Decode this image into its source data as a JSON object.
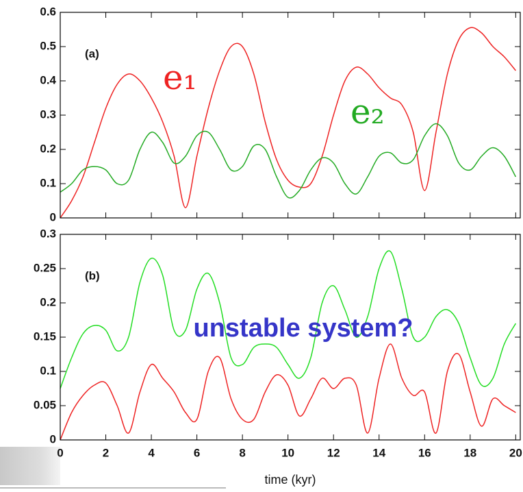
{
  "chart_data": [
    {
      "type": "line",
      "annotation": "(a)",
      "annotation_color": "#111111",
      "x": [
        0,
        0.5,
        1,
        1.5,
        2,
        2.5,
        3,
        3.5,
        4,
        4.5,
        5,
        5.5,
        6,
        6.5,
        7,
        7.5,
        8,
        8.5,
        9,
        9.5,
        10,
        10.5,
        11,
        11.5,
        12,
        12.5,
        13,
        13.5,
        14,
        14.5,
        15,
        15.5,
        16,
        16.5,
        17,
        17.5,
        18,
        18.5,
        19,
        19.5,
        20
      ],
      "series": [
        {
          "name": "e₁",
          "color": "#ee2222",
          "values": [
            0,
            0.05,
            0.12,
            0.22,
            0.32,
            0.39,
            0.42,
            0.4,
            0.35,
            0.28,
            0.18,
            0.03,
            0.18,
            0.32,
            0.43,
            0.5,
            0.5,
            0.42,
            0.28,
            0.17,
            0.11,
            0.09,
            0.1,
            0.18,
            0.3,
            0.4,
            0.44,
            0.42,
            0.38,
            0.35,
            0.33,
            0.25,
            0.08,
            0.25,
            0.42,
            0.52,
            0.555,
            0.54,
            0.5,
            0.47,
            0.43
          ]
        },
        {
          "name": "e₂",
          "color": "#22aa22",
          "values": [
            0.075,
            0.1,
            0.14,
            0.15,
            0.14,
            0.1,
            0.11,
            0.2,
            0.25,
            0.22,
            0.16,
            0.18,
            0.24,
            0.25,
            0.2,
            0.14,
            0.15,
            0.21,
            0.2,
            0.12,
            0.06,
            0.08,
            0.14,
            0.175,
            0.16,
            0.1,
            0.07,
            0.12,
            0.18,
            0.19,
            0.16,
            0.17,
            0.24,
            0.275,
            0.24,
            0.16,
            0.14,
            0.18,
            0.205,
            0.18,
            0.12
          ]
        }
      ],
      "xlim": [
        0,
        20.2
      ],
      "xticks": [
        0,
        2,
        4,
        6,
        8,
        10,
        12,
        14,
        16,
        18,
        20
      ],
      "xtick_labels": false,
      "ylim": [
        0,
        0.6
      ],
      "yticks": [
        0,
        0.1,
        0.2,
        0.3,
        0.4,
        0.5,
        0.6
      ]
    },
    {
      "type": "line",
      "annotation": "(b)",
      "annotation_color": "#111111",
      "note": "unstable system?",
      "note_color": "#3535c8",
      "x_label": "time (kyr)",
      "x": [
        0,
        0.5,
        1,
        1.5,
        2,
        2.5,
        3,
        3.5,
        4,
        4.5,
        5,
        5.5,
        6,
        6.5,
        7,
        7.5,
        8,
        8.5,
        9,
        9.5,
        10,
        10.5,
        11,
        11.5,
        12,
        12.5,
        13,
        13.5,
        14,
        14.5,
        15,
        15.5,
        16,
        16.5,
        17,
        17.5,
        18,
        18.5,
        19,
        19.5,
        20
      ],
      "series": [
        {
          "color": "#ee2222",
          "values": [
            0,
            0.04,
            0.065,
            0.08,
            0.083,
            0.05,
            0.01,
            0.07,
            0.11,
            0.09,
            0.07,
            0.04,
            0.03,
            0.1,
            0.12,
            0.06,
            0.03,
            0.03,
            0.07,
            0.095,
            0.08,
            0.035,
            0.06,
            0.09,
            0.075,
            0.09,
            0.08,
            0.01,
            0.09,
            0.14,
            0.09,
            0.065,
            0.07,
            0.01,
            0.1,
            0.125,
            0.07,
            0.02,
            0.06,
            0.05,
            0.04
          ]
        },
        {
          "color": "#22dd22",
          "values": [
            0.075,
            0.12,
            0.155,
            0.167,
            0.16,
            0.13,
            0.15,
            0.23,
            0.265,
            0.24,
            0.16,
            0.16,
            0.22,
            0.243,
            0.2,
            0.12,
            0.11,
            0.135,
            0.14,
            0.135,
            0.11,
            0.09,
            0.12,
            0.2,
            0.225,
            0.19,
            0.15,
            0.18,
            0.25,
            0.275,
            0.22,
            0.15,
            0.15,
            0.18,
            0.19,
            0.17,
            0.12,
            0.08,
            0.09,
            0.14,
            0.17
          ]
        }
      ],
      "xlim": [
        0,
        20.2
      ],
      "xticks": [
        0,
        2,
        4,
        6,
        8,
        10,
        12,
        14,
        16,
        18,
        20
      ],
      "xtick_labels": true,
      "ylim": [
        0,
        0.3
      ],
      "yticks": [
        0,
        0.05,
        0.1,
        0.15,
        0.2,
        0.25,
        0.3
      ]
    }
  ]
}
